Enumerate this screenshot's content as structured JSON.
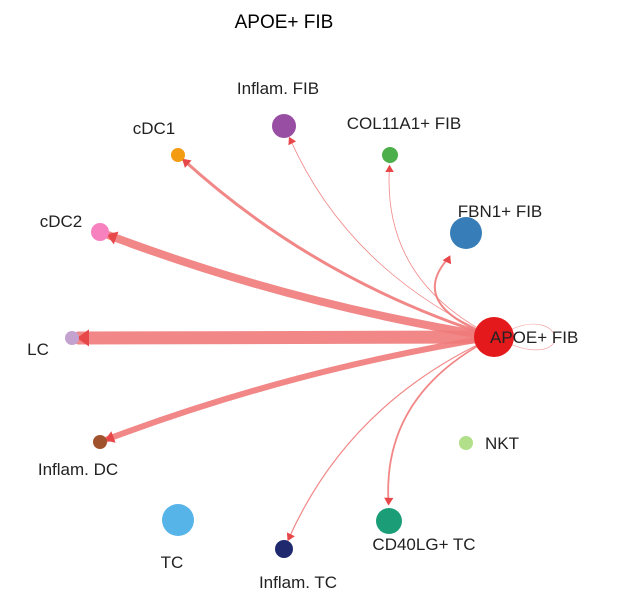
{
  "title": "APOE+ FIB",
  "source_node": "APOE+ FIB",
  "edge_color": "#f07a7a",
  "nodes": [
    {
      "id": "apoe_fib",
      "label": "APOE+ FIB",
      "color": "#e3191c"
    },
    {
      "id": "inflam_fib",
      "label": "Inflam. FIB",
      "color": "#984ea3"
    },
    {
      "id": "col11a1_fib",
      "label": "COL11A1+ FIB",
      "color": "#4daf4a"
    },
    {
      "id": "fbn1_fib",
      "label": "FBN1+ FIB",
      "color": "#377eb8"
    },
    {
      "id": "cdc1",
      "label": "cDC1",
      "color": "#f39c12"
    },
    {
      "id": "cdc2",
      "label": "cDC2",
      "color": "#f781bf"
    },
    {
      "id": "lc",
      "label": "LC",
      "color": "#c4a2d0"
    },
    {
      "id": "inflam_dc",
      "label": "Inflam. DC",
      "color": "#a0522d"
    },
    {
      "id": "nkt",
      "label": "NKT",
      "color": "#b2df8a"
    },
    {
      "id": "cd40lg_tc",
      "label": "CD40LG+ TC",
      "color": "#1b9e77"
    },
    {
      "id": "tc",
      "label": "TC",
      "color": "#56b4e9"
    },
    {
      "id": "inflam_tc",
      "label": "Inflam. TC",
      "color": "#1f2a6e"
    }
  ],
  "edges": [
    {
      "from": "apoe_fib",
      "to": "apoe_fib",
      "weight": 0.5
    },
    {
      "from": "apoe_fib",
      "to": "inflam_fib",
      "weight": 0.8
    },
    {
      "from": "apoe_fib",
      "to": "col11a1_fib",
      "weight": 0.8
    },
    {
      "from": "apoe_fib",
      "to": "fbn1_fib",
      "weight": 2.0
    },
    {
      "from": "apoe_fib",
      "to": "cdc1",
      "weight": 3.0
    },
    {
      "from": "apoe_fib",
      "to": "cdc2",
      "weight": 8.0
    },
    {
      "from": "apoe_fib",
      "to": "lc",
      "weight": 13.0
    },
    {
      "from": "apoe_fib",
      "to": "inflam_dc",
      "weight": 6.0
    },
    {
      "from": "apoe_fib",
      "to": "cd40lg_tc",
      "weight": 1.8
    },
    {
      "from": "apoe_fib",
      "to": "inflam_tc",
      "weight": 1.2
    }
  ]
}
